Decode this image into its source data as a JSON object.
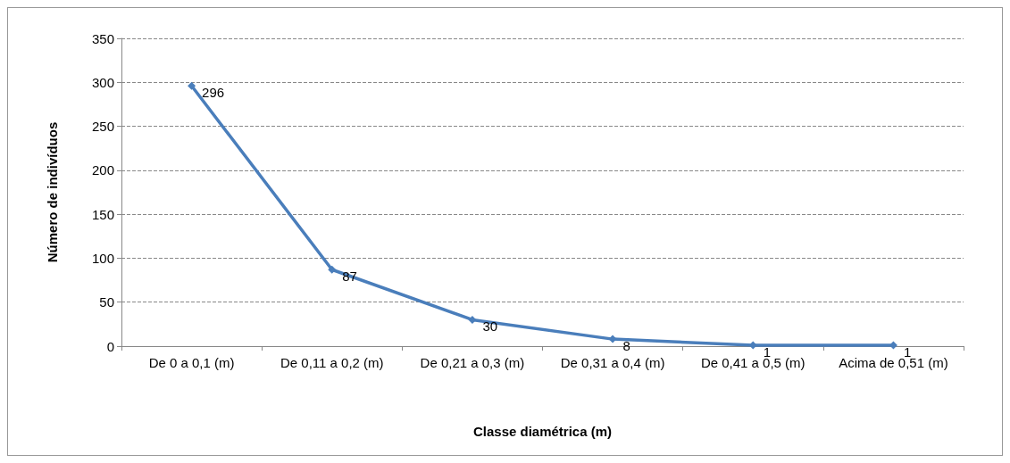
{
  "chart_data": {
    "type": "line",
    "xlabel": "Classe diamétrica (m)",
    "ylabel": "Número de indivíduos",
    "categories": [
      "De 0 a 0,1 (m)",
      "De 0,11 a 0,2 (m)",
      "De 0,21 a 0,3 (m)",
      "De 0,31 a 0,4 (m)",
      "De 0,41 a 0,5 (m)",
      "Acima de 0,51 (m)"
    ],
    "series": [
      {
        "color": "#4a7ebb",
        "values": [
          296,
          87,
          30,
          8,
          1,
          1
        ]
      }
    ],
    "ylim": [
      0,
      350
    ],
    "yticks": [
      0,
      50,
      100,
      150,
      200,
      250,
      300,
      350
    ],
    "grid": "y",
    "marker": "diamond",
    "line_style": "solid",
    "data_labels": true
  }
}
